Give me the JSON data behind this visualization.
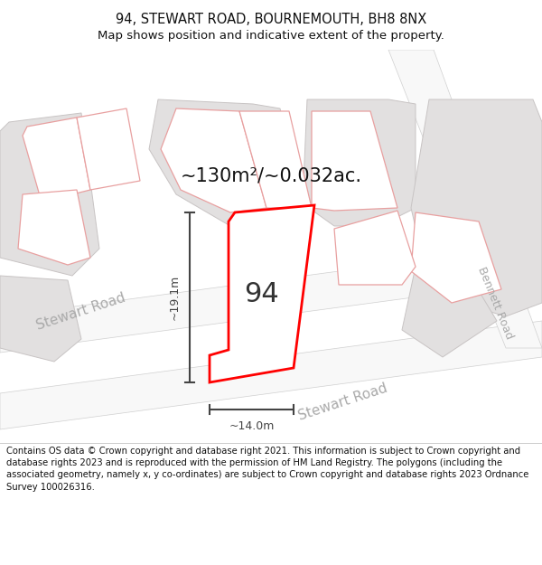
{
  "title": "94, STEWART ROAD, BOURNEMOUTH, BH8 8NX",
  "subtitle": "Map shows position and indicative extent of the property.",
  "area_label": "~130m²/~0.032ac.",
  "property_number": "94",
  "dim_width": "~14.0m",
  "dim_height": "~19.1m",
  "footer": "Contains OS data © Crown copyright and database right 2021. This information is subject to Crown copyright and database rights 2023 and is reproduced with the permission of HM Land Registry. The polygons (including the associated geometry, namely x, y co-ordinates) are subject to Crown copyright and database rights 2023 Ordnance Survey 100026316.",
  "map_bg": "#f2f0f0",
  "building_fill": "#e2e0e0",
  "building_stroke": "#c8c4c4",
  "highlight_fill": "#ffffff",
  "highlight_stroke": "#ff0000",
  "pink_stroke": "#e8a0a0",
  "dim_color": "#444444",
  "road_label_color": "#aaaaaa",
  "title_fontsize": 10.5,
  "subtitle_fontsize": 9.5,
  "footer_fontsize": 7.2,
  "area_fontsize": 15,
  "number_fontsize": 22,
  "road_fontsize": 11
}
